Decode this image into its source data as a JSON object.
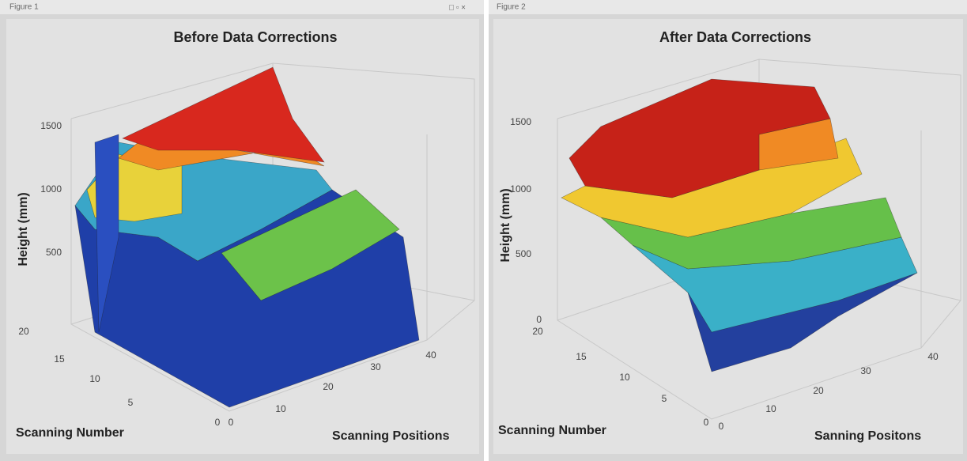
{
  "windows": [
    {
      "tab": "Figure 1",
      "title": "Before Data Corrections",
      "z_label": "Height (mm)",
      "z_ticks": [
        "1500",
        "1000",
        "500"
      ],
      "scan_number_ticks": [
        "20",
        "15",
        "10",
        "5",
        "0"
      ],
      "position_ticks": [
        "0",
        "10",
        "20",
        "30",
        "40"
      ],
      "x_label": "Scanning Number",
      "y_label": "Scanning Positions"
    },
    {
      "tab": "Figure 2",
      "title": "After Data Corrections",
      "z_label": "Height (mm)",
      "z_ticks": [
        "1500",
        "1000",
        "500",
        "0"
      ],
      "scan_number_ticks": [
        "20",
        "15",
        "10",
        "5",
        "0"
      ],
      "position_ticks": [
        "0",
        "10",
        "20",
        "30",
        "40"
      ],
      "x_label": "Scanning Number",
      "y_label": "Sanning Positons"
    }
  ]
}
